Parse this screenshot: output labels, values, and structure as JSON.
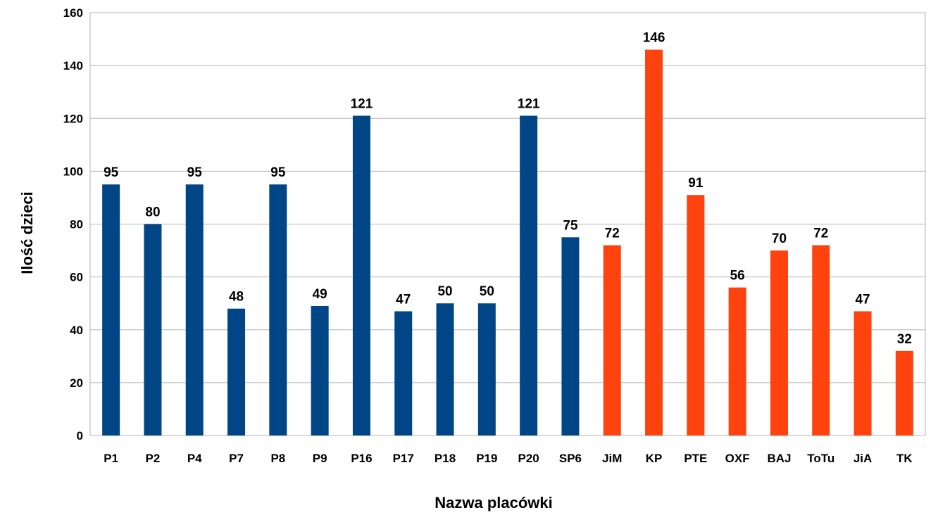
{
  "chart_data": {
    "type": "bar",
    "xlabel": "Nazwa placówki",
    "ylabel": "Ilość dzieci",
    "ylim": [
      0,
      160
    ],
    "yticks": [
      0,
      20,
      40,
      60,
      80,
      100,
      120,
      140,
      160
    ],
    "grid": true,
    "categories": [
      "P1",
      "P2",
      "P4",
      "P7",
      "P8",
      "P9",
      "P16",
      "P17",
      "P18",
      "P19",
      "P20",
      "SP6",
      "JiM",
      "KP",
      "PTE",
      "OXF",
      "BAJ",
      "ToTu",
      "JiA",
      "TK"
    ],
    "values": [
      95,
      80,
      95,
      48,
      95,
      49,
      121,
      47,
      50,
      50,
      121,
      75,
      72,
      146,
      91,
      56,
      70,
      72,
      47,
      32
    ],
    "bar_colors": [
      "#004586",
      "#004586",
      "#004586",
      "#004586",
      "#004586",
      "#004586",
      "#004586",
      "#004586",
      "#004586",
      "#004586",
      "#004586",
      "#004586",
      "#ff420e",
      "#ff420e",
      "#ff420e",
      "#ff420e",
      "#ff420e",
      "#ff420e",
      "#ff420e",
      "#ff420e"
    ],
    "data_labels": [
      "95",
      "80",
      "95",
      "48",
      "95",
      "49",
      "121",
      "47",
      "50",
      "50",
      "121",
      "75",
      "72",
      "146",
      "91",
      "56",
      "70",
      "72",
      "47",
      "32"
    ]
  }
}
